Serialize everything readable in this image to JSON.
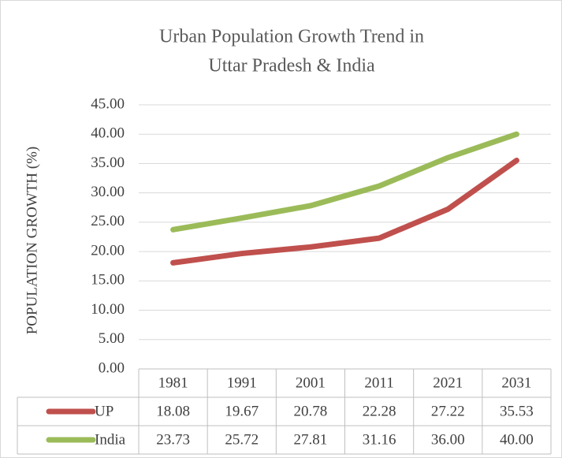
{
  "chart_data": {
    "type": "line",
    "title": [
      "Urban Population Growth Trend in",
      "Uttar Pradesh & India"
    ],
    "y_label": "POPULATION GROWTH (%)",
    "categories": [
      "1981",
      "1991",
      "2001",
      "2011",
      "2021",
      "2031"
    ],
    "series": [
      {
        "name": "UP",
        "color": "#c0504d",
        "values": [
          18.08,
          19.67,
          20.78,
          22.28,
          27.22,
          35.53
        ],
        "value_labels": [
          "18.08",
          "19.67",
          "20.78",
          "22.28",
          "27.22",
          "35.53"
        ]
      },
      {
        "name": "India",
        "color": "#9bbb59",
        "values": [
          23.73,
          25.72,
          27.81,
          31.16,
          36.0,
          40.0
        ],
        "value_labels": [
          "23.73",
          "25.72",
          "27.81",
          "31.16",
          "36.00",
          "40.00"
        ]
      }
    ],
    "ylim": [
      0,
      45
    ],
    "yticks": [
      {
        "value": 0,
        "label": "0.00"
      },
      {
        "value": 5,
        "label": "5.00"
      },
      {
        "value": 10,
        "label": "10.00"
      },
      {
        "value": 15,
        "label": "15.00"
      },
      {
        "value": 20,
        "label": "20.00"
      },
      {
        "value": 25,
        "label": "25.00"
      },
      {
        "value": 30,
        "label": "30.00"
      },
      {
        "value": 35,
        "label": "35.00"
      },
      {
        "value": 40,
        "label": "40.00"
      },
      {
        "value": 45,
        "label": "45.00"
      }
    ],
    "grid": true
  }
}
